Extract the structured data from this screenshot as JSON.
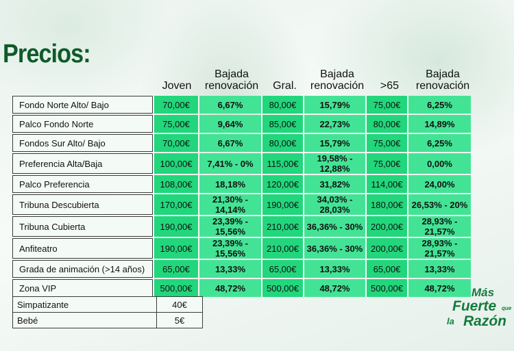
{
  "title": "Precios:",
  "headers": [
    "Joven",
    "Bajada\nrenovación",
    "Gral.",
    "Bajada\nrenovación",
    ">65",
    "Bajada\nrenovación"
  ],
  "rows": [
    {
      "category": "Fondo Norte Alto/ Bajo",
      "joven": "70,00€",
      "bajada1": "6,67%",
      "gral": "80,00€",
      "bajada2": "15,79%",
      "mayores": "75,00€",
      "bajada3": "6,25%"
    },
    {
      "category": "Palco Fondo Norte",
      "joven": "75,00€",
      "bajada1": "9,64%",
      "gral": "85,00€",
      "bajada2": "22,73%",
      "mayores": "80,00€",
      "bajada3": "14,89%"
    },
    {
      "category": "Fondos Sur Alto/ Bajo",
      "joven": "70,00€",
      "bajada1": "6,67%",
      "gral": "80,00€",
      "bajada2": "15,79%",
      "mayores": "75,00€",
      "bajada3": "6,25%"
    },
    {
      "category": "Preferencia Alta/Baja",
      "joven": "100,00€",
      "bajada1": "7,41% - 0%",
      "gral": "115,00€",
      "bajada2": "19,58% - 12,88%",
      "mayores": "75,00€",
      "bajada3": "0,00%"
    },
    {
      "category": "Palco Preferencia",
      "joven": "108,00€",
      "bajada1": "18,18%",
      "gral": "120,00€",
      "bajada2": "31,82%",
      "mayores": "114,00€",
      "bajada3": "24,00%"
    },
    {
      "category": "Tribuna Descubierta",
      "joven": "170,00€",
      "bajada1": "21,30% - 14,14%",
      "gral": "190,00€",
      "bajada2": "34,03% - 28,03%",
      "mayores": "180,00€",
      "bajada3": "26,53% - 20%"
    },
    {
      "category": "Tribuna Cubierta",
      "joven": "190,00€",
      "bajada1": "23,39% - 15,56%",
      "gral": "210,00€",
      "bajada2": "36,36% - 30%",
      "mayores": "200,00€",
      "bajada3": "28,93% - 21,57%"
    },
    {
      "category": "Anfiteatro",
      "joven": "190,00€",
      "bajada1": "23,39% - 15,56%",
      "gral": "210,00€",
      "bajada2": "36,36% - 30%",
      "mayores": "200,00€",
      "bajada3": "28,93% - 21,57%"
    },
    {
      "category": "Grada de animación (>14 años)",
      "joven": "65,00€",
      "bajada1": "13,33%",
      "gral": "65,00€",
      "bajada2": "13,33%",
      "mayores": "65,00€",
      "bajada3": "13,33%"
    },
    {
      "category": "Zona VIP",
      "joven": "500,00€",
      "bajada1": "48,72%",
      "gral": "500,00€",
      "bajada2": "48,72%",
      "mayores": "500,00€",
      "bajada3": "48,72%"
    }
  ],
  "extra": [
    {
      "label": "Simpatizante",
      "value": "40€"
    },
    {
      "label": "Bebé",
      "value": "5€"
    }
  ],
  "slogan": {
    "line1": "Más",
    "line2": "Fuerte",
    "line2_small": "que",
    "line3_small": "la",
    "line3": "Razón"
  },
  "colors": {
    "price_cell": "#22d67c",
    "discount_cell": "#43e395",
    "title": "#0f5a2a",
    "slogan": "#157a3e"
  }
}
